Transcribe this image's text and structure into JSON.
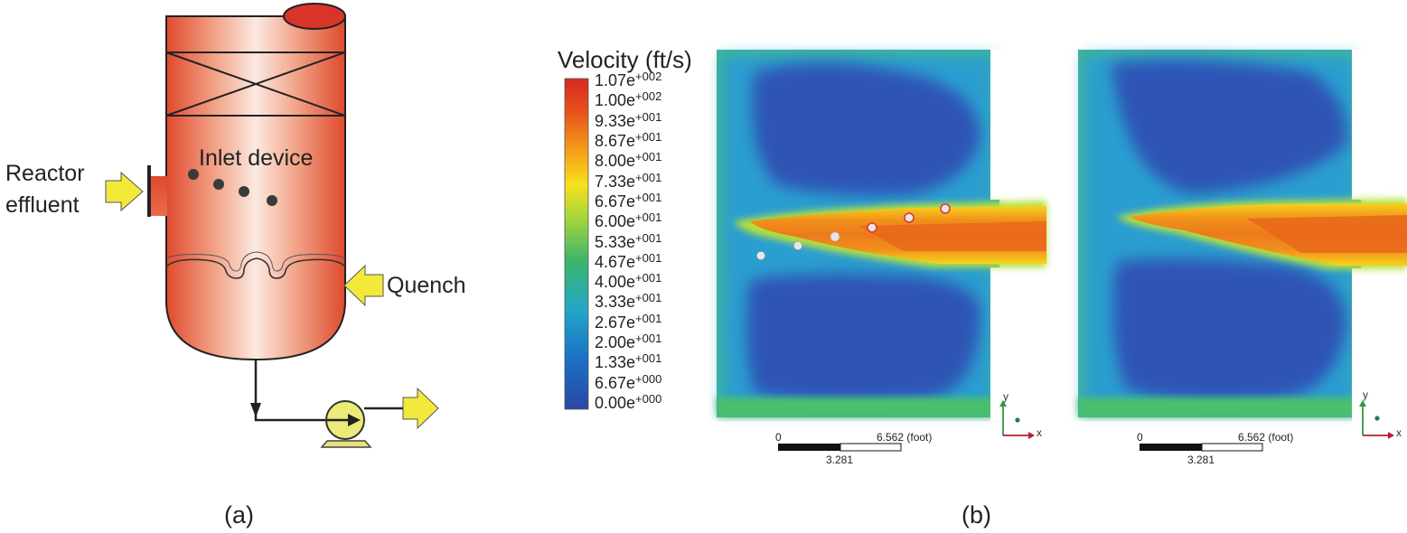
{
  "panel_a": {
    "label": "(a)",
    "left_label_line1": "Reactor",
    "left_label_line2": "effluent",
    "inlet_label": "Inlet device",
    "quench_label": "Quench"
  },
  "panel_b": {
    "label": "(b)",
    "legend": {
      "title": "Velocity (ft/s)",
      "ticks": [
        {
          "m": "1.07e",
          "e": "+002"
        },
        {
          "m": "1.00e",
          "e": "+002"
        },
        {
          "m": "9.33e",
          "e": "+001"
        },
        {
          "m": "8.67e",
          "e": "+001"
        },
        {
          "m": "8.00e",
          "e": "+001"
        },
        {
          "m": "7.33e",
          "e": "+001"
        },
        {
          "m": "6.67e",
          "e": "+001"
        },
        {
          "m": "6.00e",
          "e": "+001"
        },
        {
          "m": "5.33e",
          "e": "+001"
        },
        {
          "m": "4.67e",
          "e": "+001"
        },
        {
          "m": "4.00e",
          "e": "+001"
        },
        {
          "m": "3.33e",
          "e": "+001"
        },
        {
          "m": "2.67e",
          "e": "+001"
        },
        {
          "m": "2.00e",
          "e": "+001"
        },
        {
          "m": "1.33e",
          "e": "+001"
        },
        {
          "m": "6.67e",
          "e": "+000"
        },
        {
          "m": "0.00e",
          "e": "+000"
        }
      ],
      "colors": [
        "#d42a1f",
        "#e8501c",
        "#f5a01a",
        "#f7e01c",
        "#a7d63a",
        "#3db56a",
        "#22a7c8",
        "#1a6fc4",
        "#2a47a6"
      ]
    },
    "scale_bar": {
      "start": "0",
      "end": "6.562 (foot)",
      "mid": "3.281"
    },
    "axis": {
      "y": "y",
      "x": "x"
    }
  }
}
